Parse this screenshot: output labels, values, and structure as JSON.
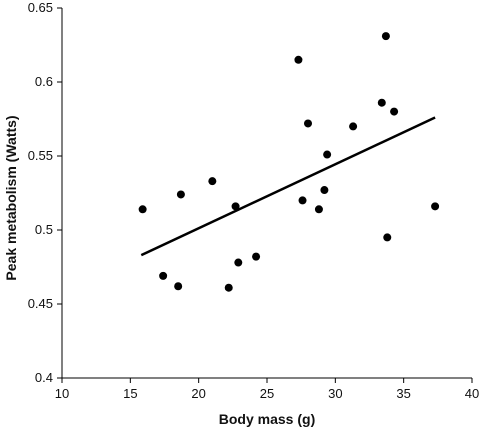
{
  "chart_data": {
    "type": "scatter",
    "xlabel": "Body mass (g)",
    "ylabel": "Peak metabolism (Watts)",
    "xlim": [
      10,
      40
    ],
    "ylim": [
      0.4,
      0.65
    ],
    "x_ticks": [
      10,
      15,
      20,
      25,
      30,
      35,
      40
    ],
    "y_ticks": [
      0.4,
      0.45,
      0.5,
      0.55,
      0.6,
      0.65
    ],
    "x_tick_labels": [
      "10",
      "15",
      "20",
      "25",
      "30",
      "35",
      "40"
    ],
    "y_tick_labels": [
      "0.4",
      "0.45",
      "0.5",
      "0.55",
      "0.6",
      "0.65"
    ],
    "grid": false,
    "marker_color": "#000000",
    "points": [
      {
        "x": 15.9,
        "y": 0.514
      },
      {
        "x": 17.4,
        "y": 0.469
      },
      {
        "x": 18.5,
        "y": 0.462
      },
      {
        "x": 18.7,
        "y": 0.524
      },
      {
        "x": 21.0,
        "y": 0.533
      },
      {
        "x": 22.2,
        "y": 0.461
      },
      {
        "x": 22.7,
        "y": 0.516
      },
      {
        "x": 22.9,
        "y": 0.478
      },
      {
        "x": 24.2,
        "y": 0.482
      },
      {
        "x": 27.3,
        "y": 0.615
      },
      {
        "x": 27.6,
        "y": 0.52
      },
      {
        "x": 28.0,
        "y": 0.572
      },
      {
        "x": 28.8,
        "y": 0.514
      },
      {
        "x": 29.2,
        "y": 0.527
      },
      {
        "x": 29.4,
        "y": 0.551
      },
      {
        "x": 31.3,
        "y": 0.57
      },
      {
        "x": 33.4,
        "y": 0.586
      },
      {
        "x": 33.7,
        "y": 0.631
      },
      {
        "x": 33.8,
        "y": 0.495
      },
      {
        "x": 34.3,
        "y": 0.58
      },
      {
        "x": 37.3,
        "y": 0.516
      }
    ],
    "trendline": {
      "x": [
        15.8,
        37.3
      ],
      "y": [
        0.483,
        0.576
      ]
    }
  }
}
